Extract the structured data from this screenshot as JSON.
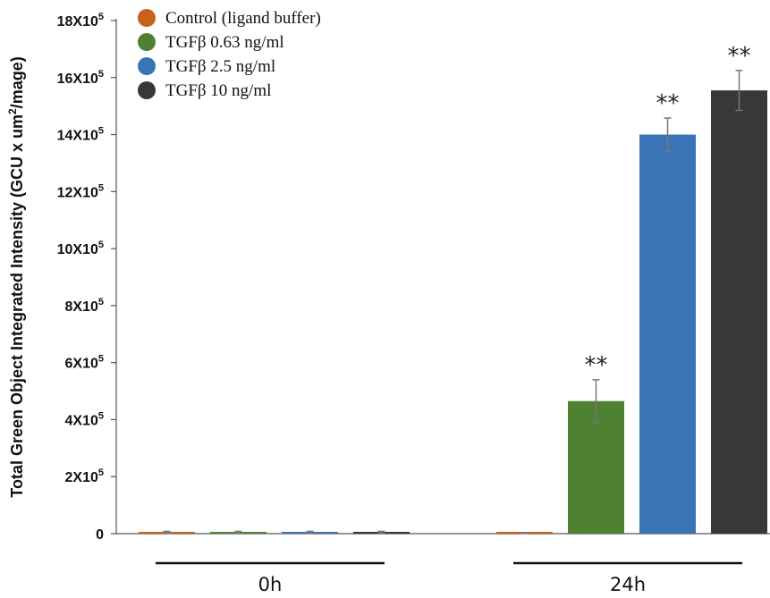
{
  "chart_data": {
    "type": "bar",
    "ylabel": "Total Green Object Integrated Intensity (GCU x um",
    "ylabel_sup": "2",
    "ylabel_suffix": "/mage)",
    "ylim": [
      0,
      1800000
    ],
    "yticks": [
      {
        "value": 0,
        "base": "0",
        "sup": ""
      },
      {
        "value": 200000,
        "base": "2X10",
        "sup": "5"
      },
      {
        "value": 400000,
        "base": "4X10",
        "sup": "5"
      },
      {
        "value": 600000,
        "base": "6X10",
        "sup": "5"
      },
      {
        "value": 800000,
        "base": "8X10",
        "sup": "5"
      },
      {
        "value": 1000000,
        "base": "10X10",
        "sup": "5"
      },
      {
        "value": 1200000,
        "base": "12X10",
        "sup": "5"
      },
      {
        "value": 1400000,
        "base": "14X10",
        "sup": "5"
      },
      {
        "value": 1600000,
        "base": "16X10",
        "sup": "5"
      },
      {
        "value": 1800000,
        "base": "18X10",
        "sup": "5"
      }
    ],
    "categories": [
      "0h",
      "24h"
    ],
    "series": [
      {
        "name": "Control (ligand buffer)",
        "color": "#c8621a",
        "values": [
          5000,
          2000
        ],
        "errors": [
          3000,
          1000
        ],
        "annotations": [
          "",
          ""
        ]
      },
      {
        "name": "TGFβ 0.63 ng/ml",
        "color": "#4f8133",
        "values": [
          5000,
          465000
        ],
        "errors": [
          3000,
          75000
        ],
        "annotations": [
          "",
          "**"
        ]
      },
      {
        "name": "TGFβ 2.5 ng/ml",
        "color": "#3a74b7",
        "values": [
          5000,
          1400000
        ],
        "errors": [
          3000,
          58000
        ],
        "annotations": [
          "",
          "**"
        ]
      },
      {
        "name": "TGFβ 10 ng/ml",
        "color": "#3a3738",
        "values": [
          5000,
          1555000
        ],
        "errors": [
          3000,
          70000
        ],
        "annotations": [
          "",
          "**"
        ]
      }
    ],
    "grid": false,
    "legend_position": "top-left"
  }
}
